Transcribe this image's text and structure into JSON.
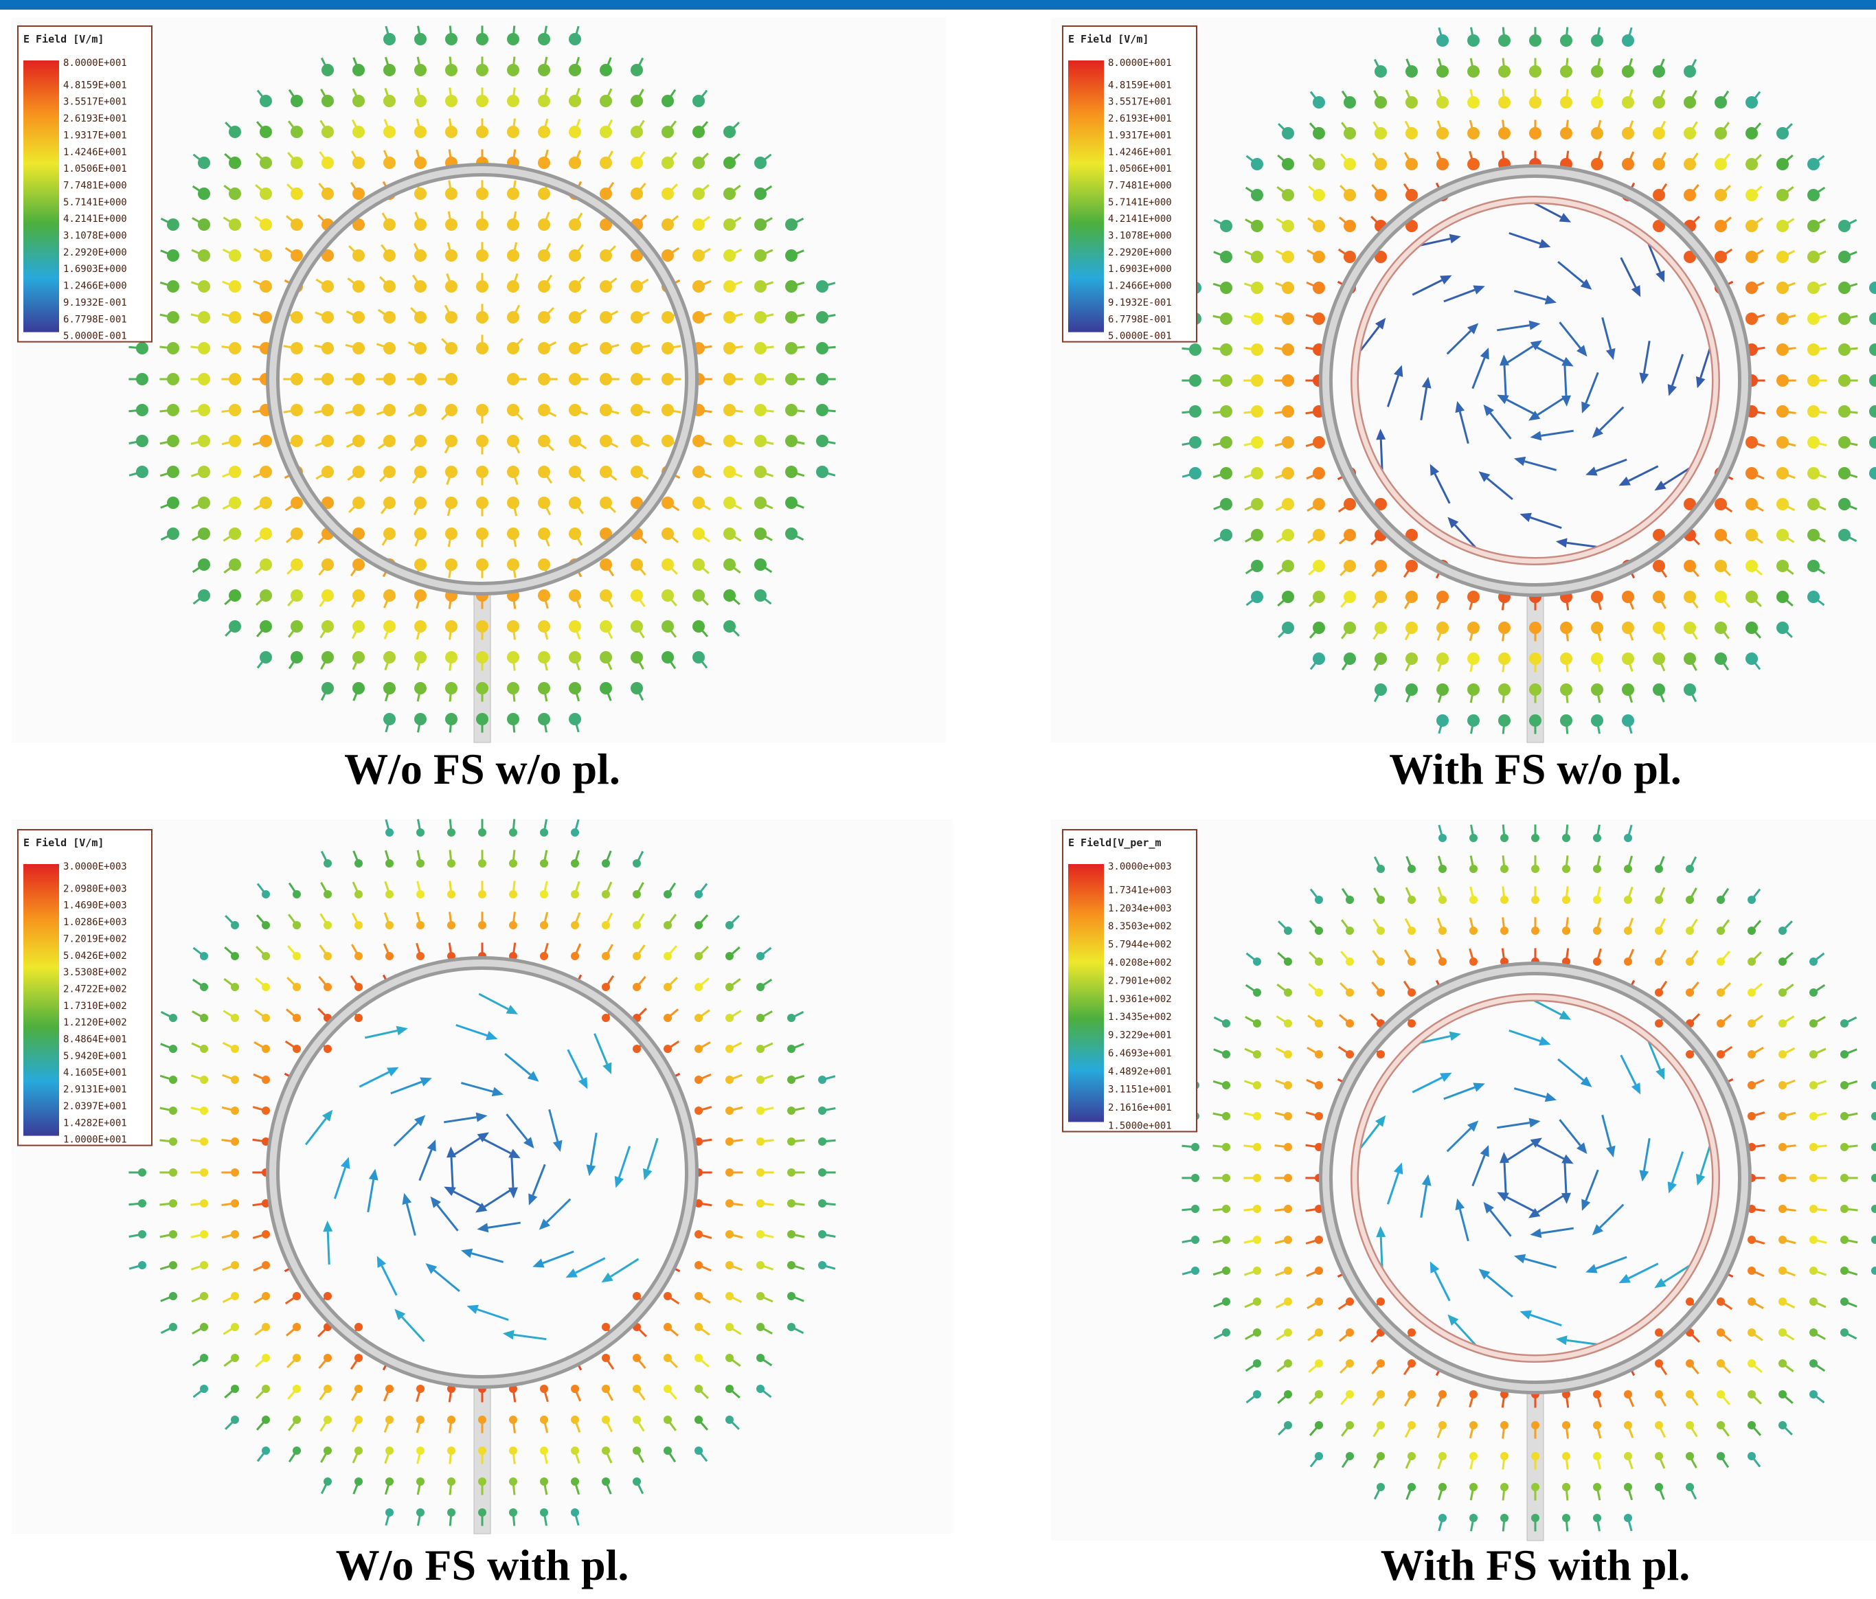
{
  "panels": [
    {
      "caption": "W/o FS w/o pl.",
      "legend": {
        "title": "E Field [V/m]",
        "values": [
          "8.0000E+001",
          "4.8159E+001",
          "3.5517E+001",
          "2.6193E+001",
          "1.9317E+001",
          "1.4246E+001",
          "1.0506E+001",
          "7.7481E+000",
          "5.7141E+000",
          "4.2141E+000",
          "3.1078E+000",
          "2.2920E+000",
          "1.6903E+000",
          "1.2466E+000",
          "9.1932E-001",
          "6.7798E-001",
          "5.0000E-001"
        ]
      }
    },
    {
      "caption": "With FS w/o pl.",
      "legend": {
        "title": "E Field [V/m]",
        "values": [
          "8.0000E+001",
          "4.8159E+001",
          "3.5517E+001",
          "2.6193E+001",
          "1.9317E+001",
          "1.4246E+001",
          "1.0506E+001",
          "7.7481E+000",
          "5.7141E+000",
          "4.2141E+000",
          "3.1078E+000",
          "2.2920E+000",
          "1.6903E+000",
          "1.2466E+000",
          "9.1932E-001",
          "6.7798E-001",
          "5.0000E-001"
        ]
      }
    },
    {
      "caption": "W/o FS with pl.",
      "legend": {
        "title": "E Field [V/m]",
        "values": [
          "3.0000E+003",
          "2.0980E+003",
          "1.4690E+003",
          "1.0286E+003",
          "7.2019E+002",
          "5.0426E+002",
          "3.5308E+002",
          "2.4722E+002",
          "1.7310E+002",
          "1.2120E+002",
          "8.4864E+001",
          "5.9420E+001",
          "4.1605E+001",
          "2.9131E+001",
          "2.0397E+001",
          "1.4282E+001",
          "1.0000E+001"
        ]
      }
    },
    {
      "caption": "With FS with pl.",
      "legend": {
        "title": "E Field[V_per_m",
        "values": [
          "3.0000e+003",
          "1.7341e+003",
          "1.2034e+003",
          "8.3503e+002",
          "5.7944e+002",
          "4.0208e+002",
          "2.7901e+002",
          "1.9361e+002",
          "1.3435e+002",
          "9.3229e+001",
          "6.4693e+001",
          "4.4892e+001",
          "3.1151e+001",
          "2.1616e+001",
          "1.5000e+001"
        ]
      }
    }
  ]
}
